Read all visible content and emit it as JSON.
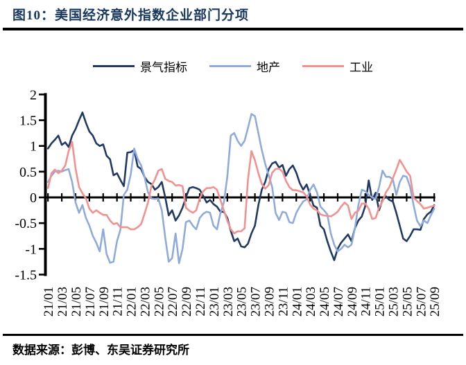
{
  "title": {
    "text": "图10：美国经济意外指数企业部门分项"
  },
  "legend": [
    {
      "label": "景气指标",
      "color": "#1F3864"
    },
    {
      "label": "地产",
      "color": "#8FAADC"
    },
    {
      "label": "工业",
      "color": "#F4908E"
    }
  ],
  "source": {
    "text": "数据来源：彭博、东吴证券研究所"
  },
  "chart_data": {
    "type": "line",
    "title": "美国经济意外指数企业部门分项",
    "xlabel": "",
    "ylabel": "",
    "ylim": [
      -1.5,
      2
    ],
    "grid": false,
    "legend_position": "top-center",
    "x_start": "2021-01",
    "x_end": "2025-09",
    "points_per_month": 2,
    "y_ticks": [
      {
        "label": "2",
        "value": 2
      },
      {
        "label": "1.5",
        "value": 1.5
      },
      {
        "label": "1",
        "value": 1
      },
      {
        "label": "0.5",
        "value": 0.5
      },
      {
        "label": "0",
        "value": 0
      },
      {
        "label": "-0.5",
        "value": -0.5
      },
      {
        "label": "-1",
        "value": -1
      },
      {
        "label": "-1.5",
        "value": -1.5
      }
    ],
    "x_tick_labels": [
      "21/01",
      "21/03",
      "21/05",
      "21/07",
      "21/09",
      "21/11",
      "22/01",
      "22/03",
      "22/05",
      "22/07",
      "22/09",
      "22/11",
      "23/01",
      "23/03",
      "23/05",
      "23/07",
      "23/09",
      "23/11",
      "24/01",
      "24/03",
      "24/05",
      "24/07",
      "24/09",
      "24/11",
      "25/01",
      "25/03",
      "25/05",
      "25/07",
      "25/09"
    ],
    "series": [
      {
        "name": "景气指标",
        "color": "#1F3864",
        "values": [
          0.95,
          1.05,
          1.12,
          1.2,
          1.02,
          1.07,
          0.98,
          1.2,
          1.33,
          1.5,
          1.65,
          1.45,
          1.28,
          1.2,
          1.05,
          1.0,
          1.03,
          0.81,
          0.74,
          0.43,
          0.47,
          0.34,
          0.22,
          0.87,
          0.88,
          0.92,
          0.6,
          0.55,
          0.4,
          0.3,
          0.26,
          0.15,
          0.2,
          0.3,
          0.0,
          -0.35,
          -0.25,
          -0.45,
          -0.35,
          -0.2,
          0.0,
          0.18,
          0.2,
          0.18,
          0.15,
          0.03,
          -0.1,
          -0.05,
          -0.13,
          -0.18,
          -0.28,
          -0.28,
          -0.4,
          -0.65,
          -0.85,
          -0.8,
          -0.95,
          -0.97,
          -0.9,
          -0.7,
          -0.55,
          -0.15,
          0.15,
          0.3,
          0.55,
          0.66,
          0.69,
          0.58,
          0.63,
          0.42,
          0.55,
          0.62,
          0.48,
          0.28,
          0.15,
          0.25,
          0.05,
          -0.16,
          -0.2,
          -0.55,
          -0.62,
          -0.85,
          -1.05,
          -1.22,
          -1.0,
          -0.88,
          -0.8,
          -0.72,
          -0.85,
          -0.6,
          -0.45,
          -0.37,
          -0.17,
          0.33,
          -0.05,
          0.09,
          -0.25,
          -0.05,
          0.02,
          -0.05,
          -0.08,
          -0.3,
          -0.55,
          -0.8,
          -0.85,
          -0.75,
          -0.62,
          -0.62,
          -0.63,
          -0.42,
          -0.33,
          -0.28,
          -0.15
        ]
      },
      {
        "name": "地产",
        "color": "#8FAADC",
        "values": [
          0.3,
          0.42,
          0.5,
          0.52,
          0.5,
          0.53,
          0.55,
          0.3,
          -0.1,
          -0.3,
          -0.15,
          -0.4,
          -0.55,
          -0.75,
          -0.88,
          -1.05,
          -0.62,
          -1.1,
          -1.27,
          -1.25,
          -0.85,
          -0.63,
          0.05,
          0.15,
          0.45,
          0.95,
          0.75,
          0.62,
          0.4,
          0.1,
          -0.02,
          -0.03,
          -0.02,
          -0.25,
          -0.78,
          -1.25,
          -1.18,
          -0.7,
          -1.28,
          -1.0,
          -0.48,
          -0.45,
          -0.55,
          -0.62,
          -0.4,
          -0.32,
          -0.28,
          -0.3,
          -0.55,
          -0.62,
          -0.3,
          -0.1,
          0.4,
          1.2,
          1.25,
          1.1,
          1.0,
          1.1,
          1.35,
          1.62,
          1.58,
          1.25,
          0.92,
          0.65,
          0.43,
          0.2,
          -0.3,
          -0.44,
          -0.28,
          -0.3,
          -0.48,
          -0.5,
          -0.3,
          -0.18,
          -0.08,
          -0.04,
          0.15,
          0.25,
          0.1,
          -0.18,
          -0.25,
          -0.33,
          -0.7,
          -0.92,
          -1.05,
          -1.0,
          -0.92,
          -0.97,
          -0.92,
          -0.6,
          -0.15,
          0.15,
          0.12,
          0.05,
          0.0,
          -0.03,
          0.2,
          0.52,
          0.4,
          0.4,
          0.35,
          0.05,
          0.3,
          0.42,
          0.4,
          0.2,
          -0.15,
          -0.45,
          -0.56,
          -0.45,
          -0.5,
          -0.35,
          -0.22
        ]
      },
      {
        "name": "工业",
        "color": "#F4908E",
        "values": [
          0.18,
          0.47,
          0.54,
          0.47,
          0.52,
          0.62,
          0.9,
          1.08,
          0.56,
          0.2,
          0.08,
          -0.02,
          -0.22,
          -0.3,
          -0.25,
          -0.3,
          -0.34,
          -0.34,
          -0.45,
          -0.52,
          -0.5,
          -0.58,
          -0.58,
          -0.58,
          -0.62,
          -0.62,
          -0.58,
          -0.52,
          -0.32,
          -0.1,
          0.22,
          0.35,
          0.52,
          0.55,
          0.36,
          0.32,
          0.3,
          0.23,
          0.24,
          0.22,
          -0.2,
          -0.26,
          -0.3,
          -0.25,
          -0.02,
          0.12,
          0.18,
          0.18,
          0.2,
          0.15,
          -0.05,
          -0.25,
          -0.45,
          -0.62,
          -0.7,
          -0.66,
          -0.66,
          -0.6,
          0.35,
          0.9,
          0.72,
          0.47,
          0.26,
          0.17,
          0.24,
          0.48,
          0.55,
          0.56,
          0.5,
          0.32,
          0.2,
          0.14,
          0.14,
          0.12,
          0.1,
          0.02,
          -0.14,
          -0.22,
          -0.25,
          -0.33,
          -0.35,
          -0.36,
          -0.37,
          -0.33,
          -0.28,
          -0.18,
          -0.1,
          -0.16,
          -0.42,
          -0.3,
          -0.26,
          -0.12,
          -0.12,
          -0.22,
          -0.42,
          -0.4,
          -0.2,
          -0.08,
          0.1,
          0.2,
          0.37,
          0.54,
          0.73,
          0.62,
          0.5,
          0.42,
          0.0,
          -0.07,
          -0.13,
          -0.22,
          -0.2,
          -0.18,
          -0.16
        ]
      }
    ]
  }
}
